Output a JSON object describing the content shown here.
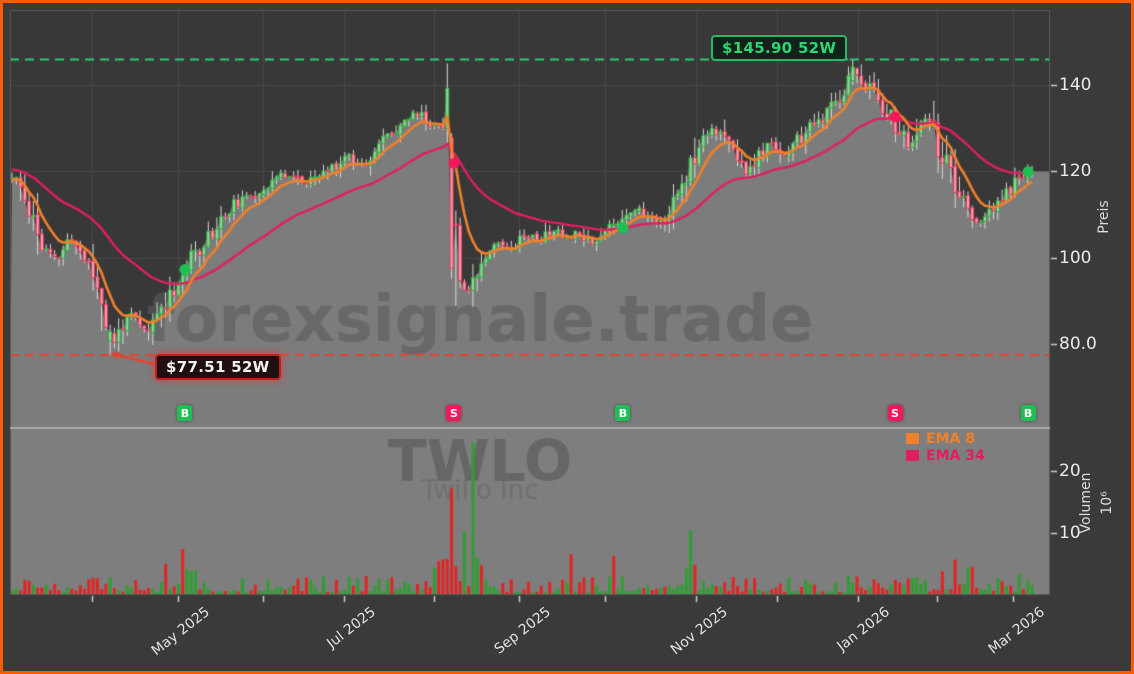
{
  "window": {
    "border_color": "#f95d00",
    "background": "#3a3a3a"
  },
  "watermarks": {
    "site": "forexsignale.trade",
    "ticker": "TWLO",
    "company": "Twilio Inc"
  },
  "chart_data": {
    "type": "candlestick+volume",
    "ticker": "TWLO",
    "x_axis": {
      "months": [
        {
          "t": 0.0784,
          "label": ""
        },
        {
          "t": 0.1627,
          "label": "May 2025"
        },
        {
          "t": 0.2461,
          "label": ""
        },
        {
          "t": 0.3252,
          "label": "Jul 2025"
        },
        {
          "t": 0.4137,
          "label": ""
        },
        {
          "t": 0.4971,
          "label": "Sep 2025"
        },
        {
          "t": 0.5814,
          "label": ""
        },
        {
          "t": 0.6706,
          "label": "Nov 2025"
        },
        {
          "t": 0.75,
          "label": ""
        },
        {
          "t": 0.8294,
          "label": "Jan 2026"
        },
        {
          "t": 0.9069,
          "label": ""
        },
        {
          "t": 0.9814,
          "label": "Mar 2026"
        }
      ]
    },
    "price_axis": {
      "label": "Preis",
      "ticks": [
        {
          "label": "140",
          "value": 140
        },
        {
          "label": "120",
          "value": 120
        },
        {
          "label": "100",
          "value": 100
        },
        {
          "label": "80.0",
          "value": 80
        }
      ],
      "range": [
        72,
        157.5
      ]
    },
    "volume_axis": {
      "label": "Volumen",
      "exponent": "10⁶",
      "ticks": [
        {
          "label": "20",
          "value": 20
        },
        {
          "label": "10",
          "value": 10
        }
      ],
      "range": [
        0,
        27
      ]
    },
    "levels": {
      "high": {
        "value": 145.9,
        "label": "$145.90 52W",
        "color": "#2ecc71"
      },
      "low": {
        "value": 77.51,
        "label": "$77.51 52W",
        "color": "#e8432c"
      }
    },
    "ema": [
      {
        "name": "EMA 8",
        "period": 8,
        "color": "#f0802a"
      },
      {
        "name": "EMA 34",
        "period": 34,
        "color": "#e01f62"
      }
    ],
    "signals": [
      {
        "t": 0.1696,
        "type": "B",
        "price": 97.3
      },
      {
        "t": 0.4333,
        "type": "S",
        "price": 121.9
      },
      {
        "t": 0.599,
        "type": "B",
        "price": 106.9
      },
      {
        "t": 0.8657,
        "type": "S",
        "price": 132.6
      },
      {
        "t": 0.9961,
        "type": "B",
        "price": 119.9
      }
    ],
    "price_path": [
      [
        0,
        118.5
      ],
      [
        0.008,
        116
      ],
      [
        0.02,
        110
      ],
      [
        0.031,
        101.5
      ],
      [
        0.044,
        99.5
      ],
      [
        0.057,
        104.5
      ],
      [
        0.068,
        101.5
      ],
      [
        0.078,
        97
      ],
      [
        0.088,
        91
      ],
      [
        0.098,
        78.8
      ],
      [
        0.108,
        85
      ],
      [
        0.118,
        86.5
      ],
      [
        0.128,
        83
      ],
      [
        0.136,
        83.5
      ],
      [
        0.147,
        89
      ],
      [
        0.16,
        93.5
      ],
      [
        0.171,
        97.5
      ],
      [
        0.185,
        103
      ],
      [
        0.2,
        107
      ],
      [
        0.215,
        112
      ],
      [
        0.23,
        113.5
      ],
      [
        0.245,
        116
      ],
      [
        0.259,
        118.5
      ],
      [
        0.273,
        119.5
      ],
      [
        0.288,
        117
      ],
      [
        0.302,
        119
      ],
      [
        0.317,
        121.5
      ],
      [
        0.33,
        124
      ],
      [
        0.341,
        121.5
      ],
      [
        0.356,
        125
      ],
      [
        0.371,
        129
      ],
      [
        0.385,
        132
      ],
      [
        0.4,
        133.5
      ],
      [
        0.41,
        130.5
      ],
      [
        0.42,
        131.5
      ],
      [
        0.4273,
        129.5
      ],
      [
        0.43,
        128.5
      ],
      [
        0.4335,
        99
      ],
      [
        0.439,
        95.5
      ],
      [
        0.447,
        92.5
      ],
      [
        0.454,
        96.5
      ],
      [
        0.463,
        101
      ],
      [
        0.473,
        103.5
      ],
      [
        0.488,
        102.5
      ],
      [
        0.502,
        105.5
      ],
      [
        0.517,
        104
      ],
      [
        0.532,
        106.5
      ],
      [
        0.541,
        104.5
      ],
      [
        0.556,
        106
      ],
      [
        0.571,
        103.5
      ],
      [
        0.585,
        107
      ],
      [
        0.598,
        109.5
      ],
      [
        0.61,
        111.5
      ],
      [
        0.624,
        109.5
      ],
      [
        0.634,
        108
      ],
      [
        0.646,
        111
      ],
      [
        0.659,
        118
      ],
      [
        0.673,
        127
      ],
      [
        0.685,
        130.5
      ],
      [
        0.698,
        127.5
      ],
      [
        0.712,
        123
      ],
      [
        0.722,
        119.5
      ],
      [
        0.734,
        124
      ],
      [
        0.746,
        126.5
      ],
      [
        0.759,
        123.5
      ],
      [
        0.771,
        127
      ],
      [
        0.785,
        130.5
      ],
      [
        0.8,
        133
      ],
      [
        0.815,
        139
      ],
      [
        0.824,
        143.8
      ],
      [
        0.834,
        141
      ],
      [
        0.847,
        137.5
      ],
      [
        0.858,
        134
      ],
      [
        0.87,
        129
      ],
      [
        0.88,
        125.5
      ],
      [
        0.89,
        129.5
      ],
      [
        0.897,
        132.5
      ],
      [
        0.907,
        127
      ],
      [
        0.919,
        119
      ],
      [
        0.93,
        113
      ],
      [
        0.941,
        109.5
      ],
      [
        0.951,
        108
      ],
      [
        0.961,
        110.5
      ],
      [
        0.974,
        114.5
      ],
      [
        0.985,
        118
      ],
      [
        1,
        120.5
      ]
    ],
    "candle_count": 240,
    "seed": 11,
    "candle_overrides": [
      {
        "t": 0.098,
        "open": 80.8,
        "close": 83.0,
        "high": 84.5,
        "low": 77.51
      },
      {
        "t": 0.4324,
        "open": 127.8,
        "close": 97.6,
        "high": 128.8,
        "low": 95.2
      },
      {
        "t": 0.8235,
        "open": 141.0,
        "close": 144.2,
        "high": 145.9,
        "low": 140.0
      }
    ],
    "volume_spikes": [
      [
        0.1657,
        7.4,
        "down"
      ],
      [
        0.172,
        4.2,
        "up"
      ],
      [
        0.426,
        5.8,
        "down"
      ],
      [
        0.4324,
        17.2,
        "down"
      ],
      [
        0.442,
        10.3,
        "up"
      ],
      [
        0.4505,
        24.6,
        "up"
      ],
      [
        0.4555,
        6.0,
        "up"
      ],
      [
        0.4615,
        4.8,
        "down"
      ],
      [
        0.549,
        6.6,
        "down"
      ],
      [
        0.588,
        6.3,
        "down"
      ],
      [
        0.6647,
        10.4,
        "up"
      ],
      [
        0.9245,
        5.7,
        "down"
      ],
      [
        0.9392,
        4.6,
        "up"
      ],
      [
        0.986,
        3.4,
        "up"
      ]
    ],
    "volume_boosts": [
      [
        0.02,
        0.05,
        1.5
      ],
      [
        0.15,
        0.19,
        1.8
      ],
      [
        0.41,
        0.47,
        2.2
      ],
      [
        0.63,
        0.68,
        1.6
      ],
      [
        0.9,
        0.96,
        1.6
      ]
    ],
    "colors": {
      "panel_bg": "#383838",
      "volume_bg": "#7e7e7e",
      "fill": "#7c7c7c",
      "grid": "#474747",
      "wick": "#d9d9d9",
      "up": "#2fae3e",
      "up_fill": "#96d69e",
      "down": "#e23b5b",
      "down_fill": "#f2a3b0",
      "vol_up": "#2f9e32",
      "vol_down": "#e02525",
      "ema8": "#f0802a",
      "ema34": "#e01f62",
      "buy": "#1fbf55",
      "sell": "#f5175a",
      "high_line": "#2ecc71",
      "low_line": "#e8432c",
      "axis_text": "#eaeaea",
      "tick_mark": "#cfcfcf",
      "divider": "#ababab",
      "frame_line": "#5a5a5a",
      "watermark_site": "rgba(92,92,92,0.62)",
      "watermark_ticker": "rgba(95,95,95,0.75)",
      "watermark_company": "rgba(100,100,100,0.55)"
    }
  }
}
